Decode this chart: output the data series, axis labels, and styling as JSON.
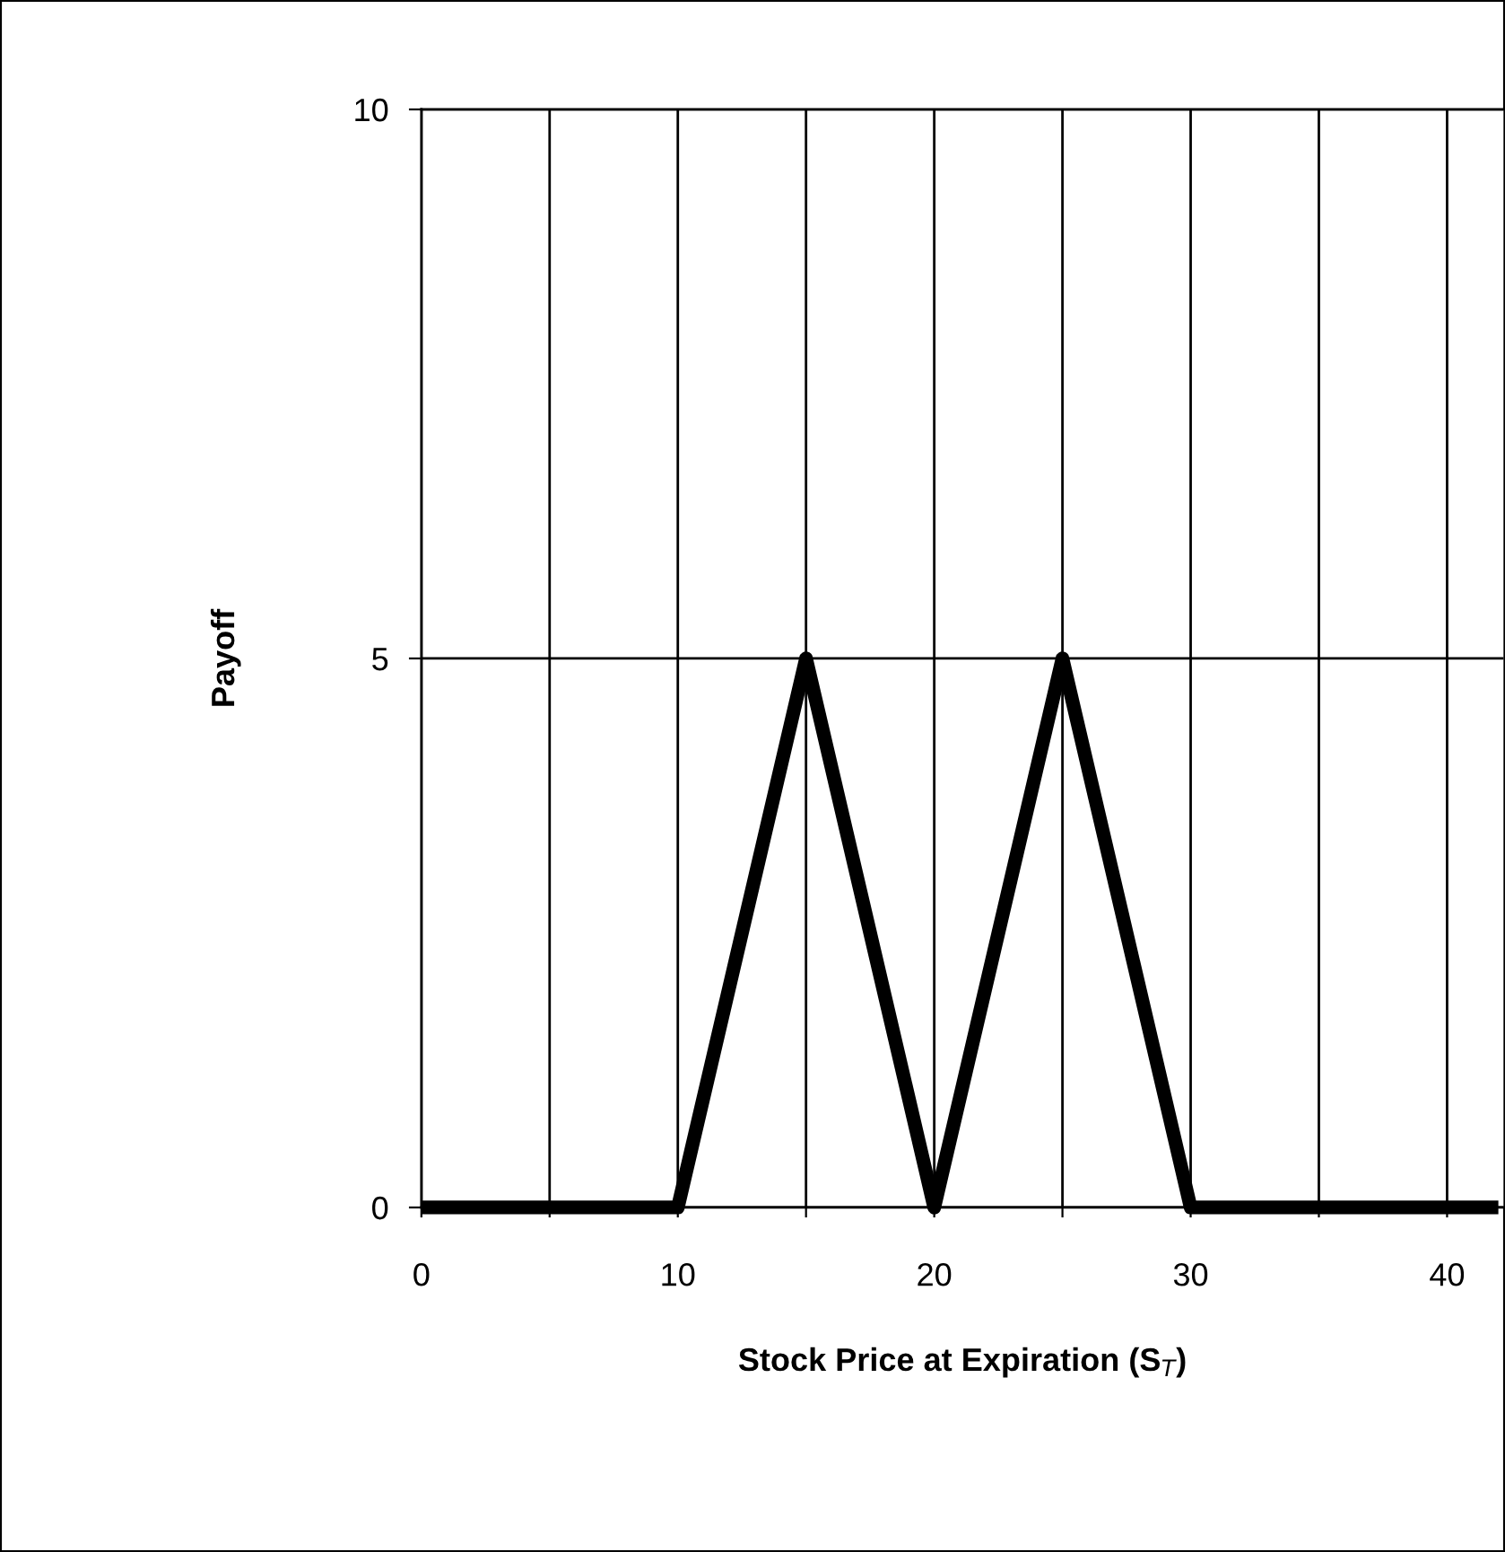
{
  "chart_data": {
    "type": "line",
    "xlabel": "Stock Price at Expiration (S$_{T}$)",
    "ylabel": "Payoff",
    "x": [
      0,
      10,
      15,
      20,
      25,
      30,
      42
    ],
    "series": [
      {
        "color": "#000000",
        "values": [
          0,
          0,
          5,
          0,
          5,
          0,
          0
        ]
      }
    ],
    "xlim": [
      0,
      42.2
    ],
    "xticks": [
      0,
      {
        "value": 5,
        "label": null
      },
      10,
      {
        "value": 15,
        "label": null
      },
      20,
      {
        "value": 25,
        "label": null
      },
      30,
      {
        "value": 35,
        "label": null
      },
      40
    ],
    "ylim": [
      0,
      10
    ],
    "yticks": [
      0,
      5,
      10
    ],
    "grid": true,
    "marker": "none",
    "line_style": "solid",
    "legend": false
  }
}
